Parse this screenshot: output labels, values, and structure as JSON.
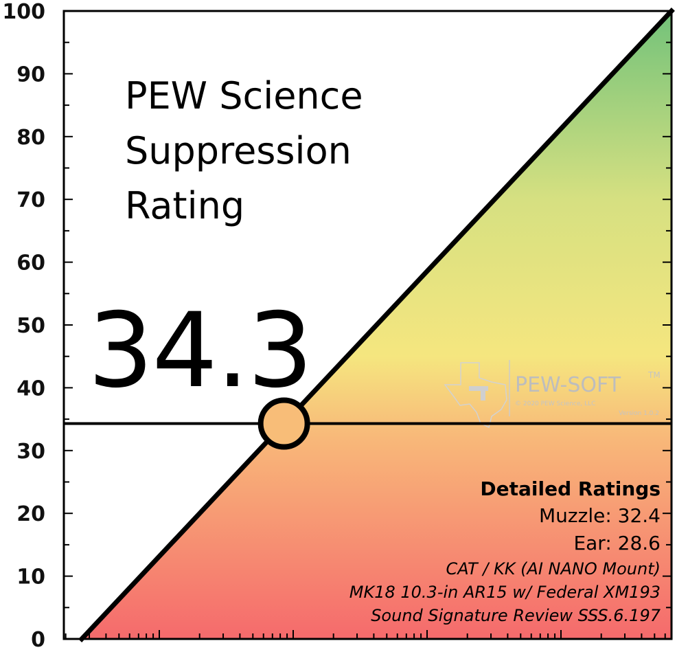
{
  "chart_data": {
    "type": "area",
    "title_lines": [
      "PEW Science",
      "Suppression",
      "Rating"
    ],
    "rating_label": "34.3",
    "rating_value": 34.3,
    "ylim": [
      0,
      100
    ],
    "yticks": [
      0,
      10,
      20,
      30,
      40,
      50,
      60,
      70,
      80,
      90,
      100
    ],
    "ytick_labels": [
      "0",
      "10",
      "20",
      "30",
      "40",
      "50",
      "60",
      "70",
      "80",
      "90",
      "100"
    ],
    "grid": false,
    "diagonal_line": {
      "from": 0,
      "to": 100
    },
    "colors": {
      "gradient_top": "#72c27a",
      "gradient_mid_upper": "#d6e081",
      "gradient_mid": "#f5e67f",
      "gradient_mid_lower": "#f8b879",
      "gradient_bottom": "#f56a6c",
      "marker_fill": "#f8bd78",
      "line": "#000000"
    },
    "detailed_ratings": {
      "title": "Detailed Ratings",
      "lines": [
        "Muzzle: 32.4",
        "Ear: 28.6"
      ],
      "info_lines": [
        "CAT / KK (AI NANO Mount)",
        "MK18 10.3-in AR15 w/ Federal XM193",
        "Sound Signature Review SSS.6.197"
      ]
    },
    "watermark": {
      "brand": "PEW-SOFT",
      "tm": "TM",
      "copyright": "© 2020 PEW Science, LLC",
      "version": "Version 1.0.2"
    }
  }
}
